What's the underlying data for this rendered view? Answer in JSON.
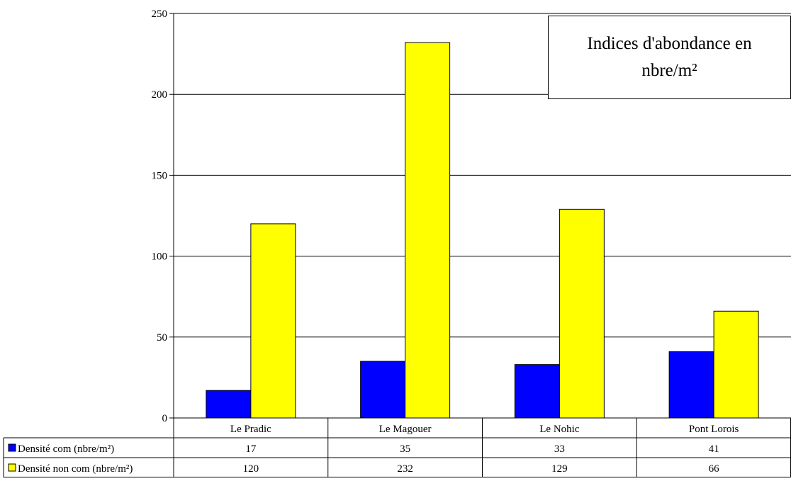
{
  "chart_data": {
    "type": "bar",
    "title": "Indices d'abondance en nbre/m²",
    "categories": [
      "Le Pradic",
      "Le Magouer",
      "Le Nohic",
      "Pont Lorois"
    ],
    "series": [
      {
        "name": "Densité com (nbre/m²)",
        "values": [
          17,
          35,
          33,
          41
        ],
        "color": "#0000ff"
      },
      {
        "name": "Densité non com (nbre/m²)",
        "values": [
          120,
          232,
          129,
          66
        ],
        "color": "#ffff00"
      }
    ],
    "ylim": [
      0,
      250
    ],
    "yticks": [
      0,
      50,
      100,
      150,
      200,
      250
    ],
    "grid": true,
    "legend": "data-table-left"
  }
}
